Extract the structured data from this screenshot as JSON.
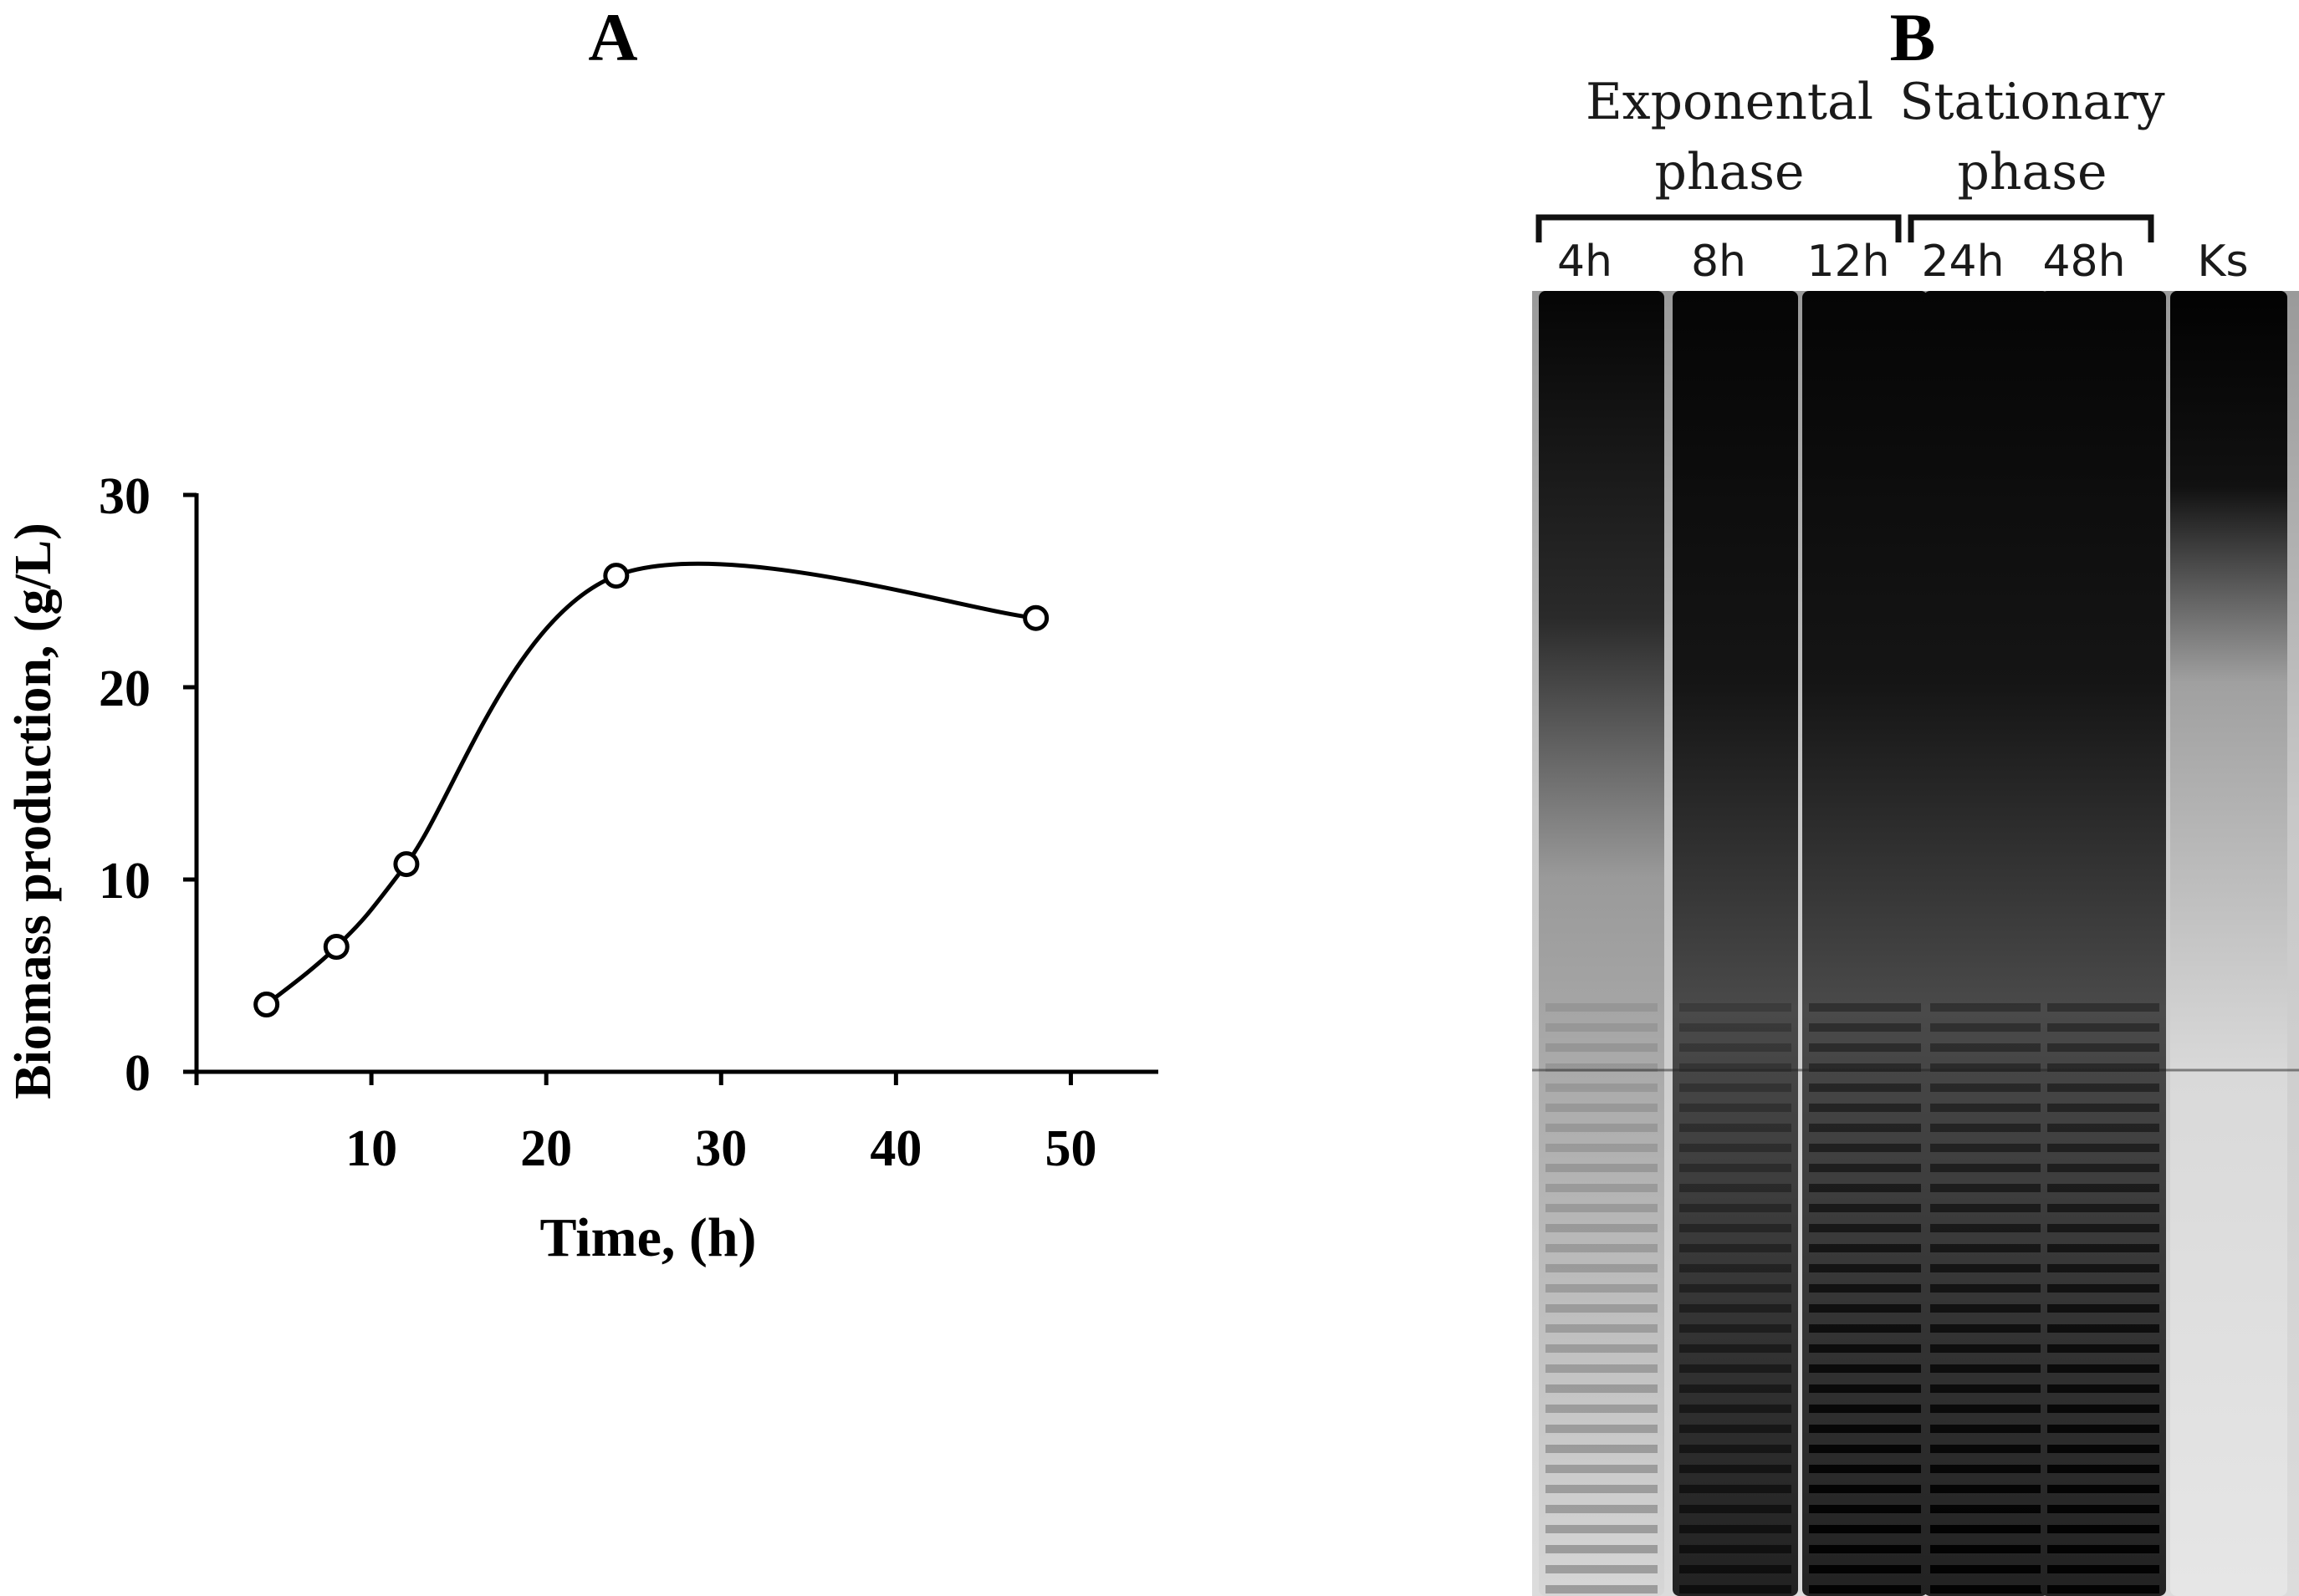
{
  "panels": {
    "a_label": "A",
    "b_label": "B"
  },
  "chart_data": {
    "type": "line",
    "title": "",
    "xlabel": "Time, (h)",
    "ylabel": "Biomass production, (g/L)",
    "xlim": [
      0,
      55
    ],
    "ylim": [
      0,
      30
    ],
    "xticks": [
      10,
      20,
      30,
      40,
      50
    ],
    "yticks": [
      0,
      10,
      20,
      30
    ],
    "grid": false,
    "marker": "open-circle",
    "smoothed": true,
    "x": [
      4,
      8,
      12,
      24,
      48
    ],
    "series": [
      {
        "values": [
          3.5,
          6.5,
          10.8,
          25.8,
          23.6
        ]
      }
    ]
  },
  "gel": {
    "groups": [
      {
        "line1": "Exponental",
        "line2": "phase"
      },
      {
        "line1": "Stationary",
        "line2": "phase"
      }
    ],
    "lanes": [
      "4h",
      "8h",
      "12h",
      "24h",
      "48h",
      "Ks"
    ]
  }
}
